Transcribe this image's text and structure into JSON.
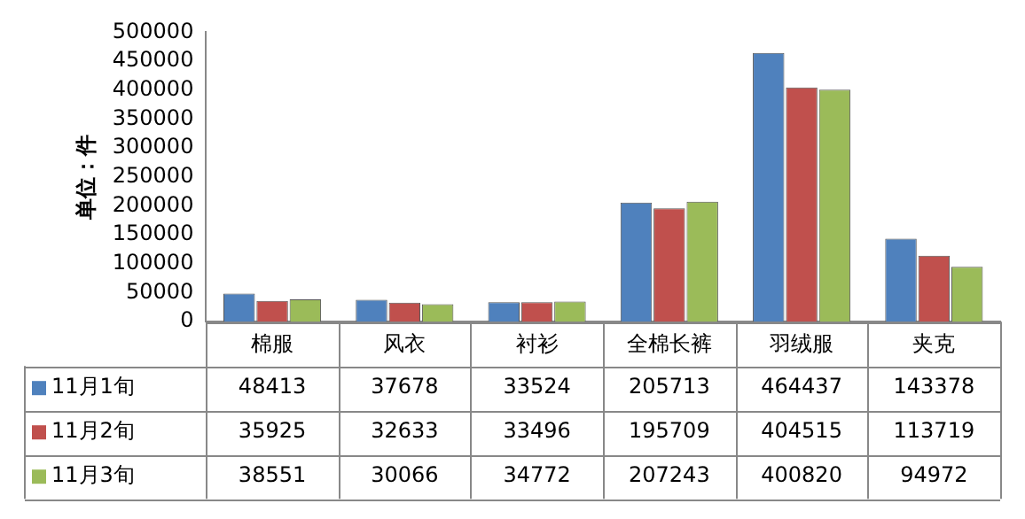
{
  "chart_data": {
    "type": "bar",
    "ylabel": "单位：件",
    "categories": [
      "棉服",
      "风衣",
      "衬衫",
      "全棉长裤",
      "羽绒服",
      "夹克"
    ],
    "series": [
      {
        "name": "11月1旬",
        "color": "#4f81bd",
        "values": [
          48413,
          37678,
          33524,
          205713,
          464437,
          143378
        ]
      },
      {
        "name": "11月2旬",
        "color": "#c0504d",
        "values": [
          35925,
          32633,
          33496,
          195709,
          404515,
          113719
        ]
      },
      {
        "name": "11月3旬",
        "color": "#9bbb59",
        "values": [
          38551,
          30066,
          34772,
          207243,
          400820,
          94972
        ]
      }
    ],
    "ylim": [
      0,
      500000
    ],
    "yticks": [
      0,
      50000,
      100000,
      150000,
      200000,
      250000,
      300000,
      350000,
      400000,
      450000,
      500000
    ],
    "grid": false,
    "legend": "bottom",
    "data_labels": true
  }
}
